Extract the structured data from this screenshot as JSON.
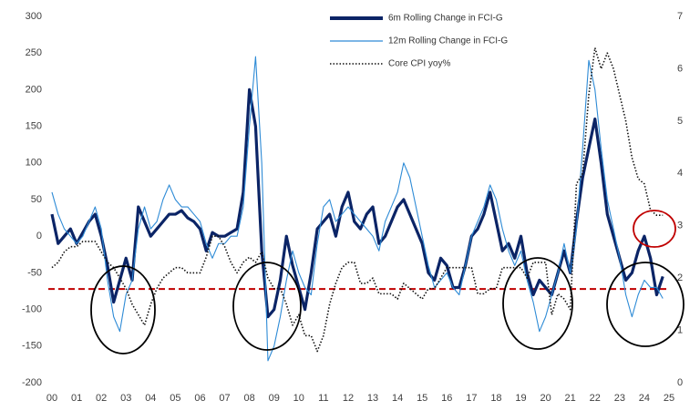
{
  "chart_data": {
    "type": "line",
    "x": [
      2000,
      2000.25,
      2000.5,
      2000.75,
      2001,
      2001.25,
      2001.5,
      2001.75,
      2002,
      2002.25,
      2002.5,
      2002.75,
      2003,
      2003.25,
      2003.5,
      2003.75,
      2004,
      2004.25,
      2004.5,
      2004.75,
      2005,
      2005.25,
      2005.5,
      2005.75,
      2006,
      2006.25,
      2006.5,
      2006.75,
      2007,
      2007.25,
      2007.5,
      2007.75,
      2008,
      2008.25,
      2008.5,
      2008.75,
      2009,
      2009.25,
      2009.5,
      2009.75,
      2010,
      2010.25,
      2010.5,
      2010.75,
      2011,
      2011.25,
      2011.5,
      2011.75,
      2012,
      2012.25,
      2012.5,
      2012.75,
      2013,
      2013.25,
      2013.5,
      2013.75,
      2014,
      2014.25,
      2014.5,
      2014.75,
      2015,
      2015.25,
      2015.5,
      2015.75,
      2016,
      2016.25,
      2016.5,
      2016.75,
      2017,
      2017.25,
      2017.5,
      2017.75,
      2018,
      2018.25,
      2018.5,
      2018.75,
      2019,
      2019.25,
      2019.5,
      2019.75,
      2020,
      2020.25,
      2020.5,
      2020.75,
      2021,
      2021.25,
      2021.5,
      2021.75,
      2022,
      2022.25,
      2022.5,
      2022.75,
      2023,
      2023.25,
      2023.5,
      2023.75,
      2024,
      2024.25,
      2024.5,
      2024.75
    ],
    "series": [
      {
        "name": "6m Rolling Change in FCI-G",
        "color": "#0b2466",
        "line_style": "bold",
        "values": [
          30,
          -10,
          0,
          10,
          -10,
          5,
          20,
          30,
          0,
          -40,
          -90,
          -60,
          -30,
          -60,
          40,
          20,
          0,
          10,
          20,
          30,
          30,
          35,
          25,
          20,
          10,
          -20,
          5,
          0,
          0,
          5,
          10,
          60,
          200,
          150,
          -20,
          -110,
          -100,
          -60,
          0,
          -40,
          -70,
          -100,
          -50,
          10,
          20,
          30,
          0,
          40,
          60,
          20,
          10,
          30,
          40,
          -10,
          0,
          20,
          40,
          50,
          30,
          10,
          -10,
          -50,
          -60,
          -30,
          -40,
          -70,
          -70,
          -40,
          0,
          10,
          30,
          60,
          20,
          -20,
          -10,
          -30,
          0,
          -50,
          -80,
          -60,
          -70,
          -80,
          -50,
          -20,
          -50,
          20,
          80,
          120,
          160,
          100,
          30,
          0,
          -30,
          -60,
          -50,
          -20,
          0,
          -30,
          -80,
          -55
        ]
      },
      {
        "name": "12m Rolling Change in FCI-G",
        "color": "#2e8bd6",
        "line_style": "solid",
        "values": [
          60,
          30,
          10,
          0,
          -10,
          0,
          20,
          40,
          10,
          -60,
          -110,
          -130,
          -80,
          -60,
          10,
          40,
          10,
          20,
          50,
          70,
          50,
          40,
          40,
          30,
          20,
          -10,
          -30,
          -10,
          -10,
          0,
          0,
          40,
          150,
          245,
          100,
          -170,
          -150,
          -110,
          -60,
          -20,
          -50,
          -70,
          -80,
          -10,
          40,
          50,
          20,
          30,
          40,
          30,
          20,
          10,
          0,
          -20,
          20,
          40,
          60,
          100,
          80,
          40,
          0,
          -40,
          -70,
          -60,
          -50,
          -70,
          -80,
          -40,
          0,
          20,
          40,
          70,
          50,
          10,
          -20,
          -40,
          -20,
          -60,
          -90,
          -130,
          -110,
          -80,
          -50,
          -10,
          -50,
          10,
          120,
          240,
          200,
          120,
          50,
          10,
          -30,
          -80,
          -110,
          -80,
          -60,
          -70,
          -70,
          -85
        ]
      },
      {
        "name": "Core CPI yoy%",
        "color": "#111111",
        "line_style": "dotted",
        "axis": "y2",
        "values": [
          2.2,
          2.3,
          2.5,
          2.6,
          2.6,
          2.7,
          2.7,
          2.7,
          2.5,
          2.3,
          2.2,
          2.0,
          1.8,
          1.5,
          1.3,
          1.1,
          1.5,
          1.8,
          2.0,
          2.1,
          2.2,
          2.2,
          2.1,
          2.1,
          2.1,
          2.4,
          2.8,
          2.8,
          2.6,
          2.3,
          2.1,
          2.3,
          2.4,
          2.3,
          2.5,
          2.0,
          1.8,
          1.8,
          1.5,
          1.1,
          1.3,
          0.9,
          0.9,
          0.6,
          0.9,
          1.5,
          1.9,
          2.2,
          2.3,
          2.3,
          1.9,
          1.9,
          2.0,
          1.7,
          1.7,
          1.7,
          1.6,
          1.9,
          1.8,
          1.7,
          1.6,
          1.8,
          1.8,
          2.0,
          2.2,
          2.2,
          2.2,
          2.2,
          2.2,
          1.7,
          1.7,
          1.8,
          1.8,
          2.2,
          2.2,
          2.2,
          2.2,
          2.0,
          2.3,
          2.3,
          2.3,
          1.3,
          1.7,
          1.6,
          1.4,
          3.8,
          4.0,
          5.5,
          6.4,
          6.0,
          6.3,
          6.0,
          5.5,
          5.0,
          4.3,
          3.9,
          3.8,
          3.3,
          3.2,
          3.2
        ]
      }
    ],
    "xlim": [
      2000,
      2025
    ],
    "xticks": [
      {
        "value": 2000,
        "label": "00"
      },
      {
        "value": 2001,
        "label": "01"
      },
      {
        "value": 2002,
        "label": "02"
      },
      {
        "value": 2003,
        "label": "03"
      },
      {
        "value": 2004,
        "label": "04"
      },
      {
        "value": 2005,
        "label": "05"
      },
      {
        "value": 2006,
        "label": "06"
      },
      {
        "value": 2007,
        "label": "07"
      },
      {
        "value": 2008,
        "label": "08"
      },
      {
        "value": 2009,
        "label": "09"
      },
      {
        "value": 2010,
        "label": "10"
      },
      {
        "value": 2011,
        "label": "11"
      },
      {
        "value": 2012,
        "label": "12"
      },
      {
        "value": 2013,
        "label": "13"
      },
      {
        "value": 2014,
        "label": "14"
      },
      {
        "value": 2015,
        "label": "15"
      },
      {
        "value": 2016,
        "label": "16"
      },
      {
        "value": 2017,
        "label": "17"
      },
      {
        "value": 2018,
        "label": "18"
      },
      {
        "value": 2019,
        "label": "19"
      },
      {
        "value": 2020,
        "label": "20"
      },
      {
        "value": 2021,
        "label": "21"
      },
      {
        "value": 2022,
        "label": "22"
      },
      {
        "value": 2023,
        "label": "23"
      },
      {
        "value": 2024,
        "label": "24"
      },
      {
        "value": 2025,
        "label": "25"
      }
    ],
    "ylim": [
      -200,
      300
    ],
    "yticks": [
      -200,
      -150,
      -100,
      -50,
      0,
      50,
      100,
      150,
      200,
      250,
      300
    ],
    "y2lim": [
      0,
      7
    ],
    "y2ticks": [
      0,
      1,
      2,
      3,
      4,
      5,
      6,
      7
    ],
    "reference_line": {
      "value": -72,
      "color": "#c00000"
    },
    "grid": false
  }
}
